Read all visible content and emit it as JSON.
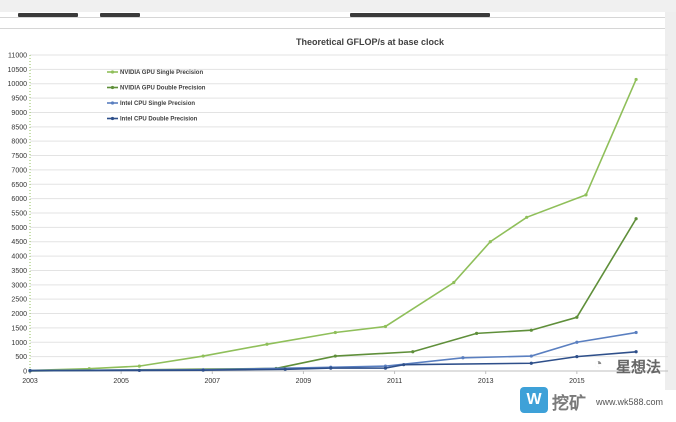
{
  "chart_data": {
    "type": "line",
    "title": "Theoretical GFLOP/s at base clock",
    "xlabel": "",
    "ylabel": "",
    "xlim": [
      2003,
      2017
    ],
    "ylim": [
      0,
      11000
    ],
    "y_ticks": [
      0,
      500,
      1000,
      1500,
      2000,
      2500,
      3000,
      3500,
      4000,
      4500,
      5000,
      5500,
      6000,
      6500,
      7000,
      7500,
      8000,
      8500,
      9000,
      9500,
      10000,
      10500,
      11000
    ],
    "x_ticks": [
      2003,
      2005,
      2007,
      2009,
      2011,
      2013,
      2015
    ],
    "legend_position": "top-left",
    "series": [
      {
        "name": "NVIDIA GPU Single Precision",
        "color": "#8fbf5a",
        "x": [
          2003.0,
          2004.3,
          2005.4,
          2006.8,
          2008.2,
          2009.7,
          2010.8,
          2012.3,
          2013.1,
          2013.9,
          2015.2,
          2016.3
        ],
        "y": [
          20,
          80,
          170,
          520,
          930,
          1340,
          1550,
          3080,
          4500,
          5350,
          6130,
          10150
        ]
      },
      {
        "name": "NVIDIA GPU Double Precision",
        "color": "#5f8f3a",
        "x": [
          2003.0,
          2008.4,
          2009.7,
          2011.4,
          2012.8,
          2014.0,
          2015.0,
          2016.3
        ],
        "y": [
          0,
          90,
          520,
          670,
          1310,
          1420,
          1870,
          5300
        ]
      },
      {
        "name": "Intel CPU Single Precision",
        "color": "#5a7fc0",
        "x": [
          2003.0,
          2006.8,
          2009.6,
          2010.8,
          2012.5,
          2014.0,
          2015.0,
          2016.3
        ],
        "y": [
          20,
          40,
          130,
          170,
          460,
          520,
          1000,
          1340
        ]
      },
      {
        "name": "Intel CPU Double Precision",
        "color": "#2e4f8a",
        "x": [
          2003.0,
          2005.4,
          2006.8,
          2008.6,
          2009.6,
          2010.8,
          2011.2,
          2014.0,
          2015.0,
          2016.3
        ],
        "y": [
          10,
          20,
          30,
          60,
          100,
          100,
          220,
          270,
          500,
          670
        ]
      }
    ],
    "annotations": []
  },
  "watermark": {
    "badge": "W",
    "text": "挖矿",
    "url": "www.wk588.com"
  },
  "brand": {
    "icon": "wechat-icon",
    "text": "星想法"
  }
}
